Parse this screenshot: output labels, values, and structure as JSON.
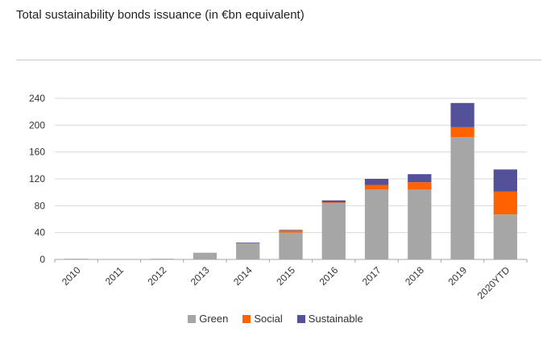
{
  "chart_data": {
    "type": "bar",
    "stacked": true,
    "title": "Total sustainability bonds issuance (in €bn equivalent)",
    "categories": [
      "2010",
      "2011",
      "2012",
      "2013",
      "2014",
      "2015",
      "2016",
      "2017",
      "2018",
      "2019",
      "2020YTD"
    ],
    "series": [
      {
        "name": "Green",
        "color": "#a6a6a6",
        "values": [
          1,
          0.5,
          1,
          10,
          24,
          40,
          84,
          104,
          104,
          182,
          67
        ]
      },
      {
        "name": "Social",
        "color": "#ff6200",
        "values": [
          0,
          0,
          0,
          0,
          0,
          3,
          1,
          7,
          11,
          15,
          34
        ]
      },
      {
        "name": "Sustainable",
        "color": "#525199",
        "values": [
          0,
          0,
          0,
          0,
          1,
          1,
          3,
          9,
          12,
          36,
          33
        ]
      }
    ],
    "yticks": [
      "0",
      "40",
      "80",
      "120",
      "160",
      "200",
      "240"
    ],
    "ylim": [
      0,
      240
    ],
    "grid": true,
    "legend_position": "bottom"
  }
}
